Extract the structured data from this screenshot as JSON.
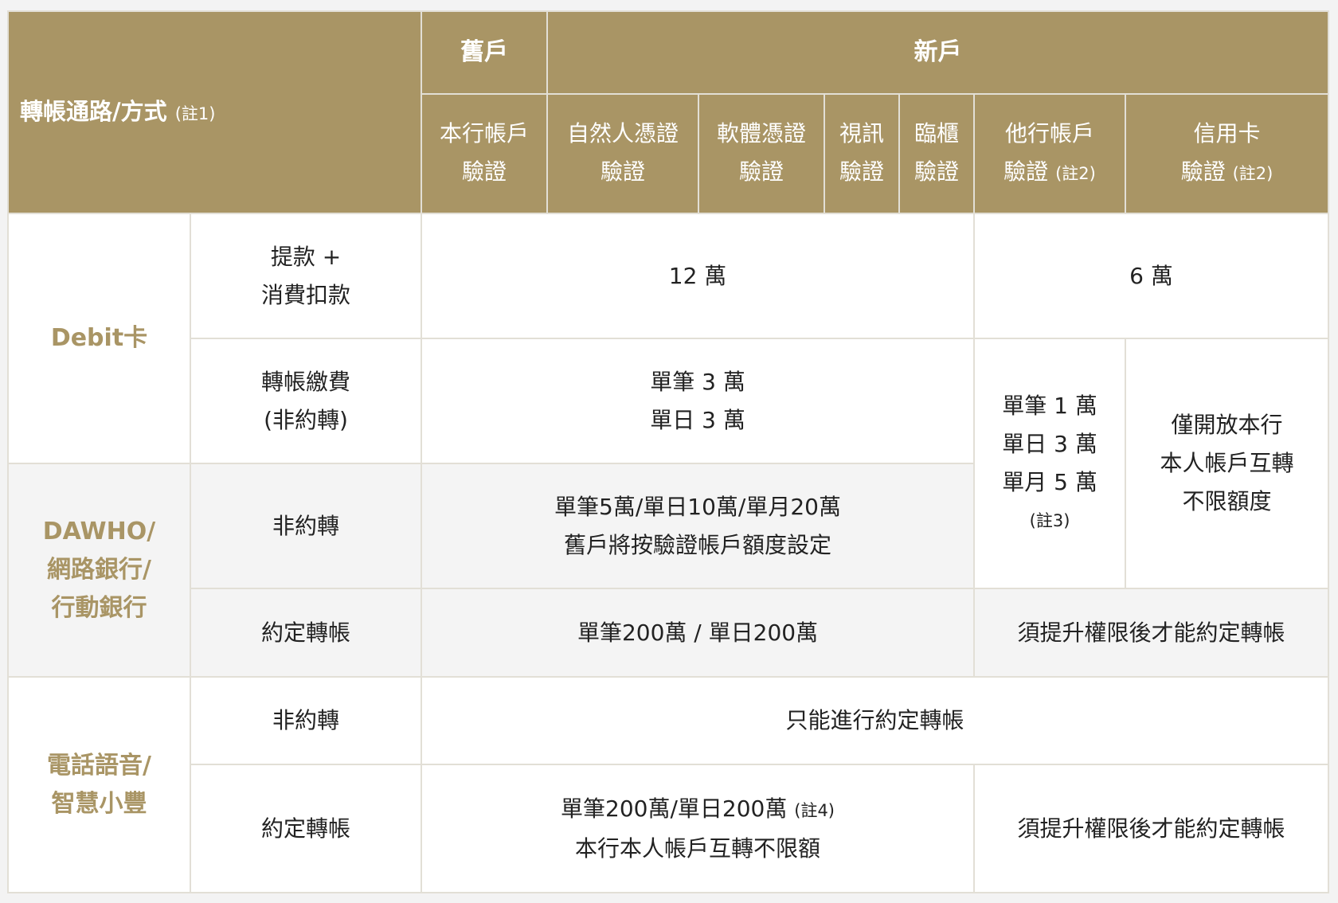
{
  "header": {
    "corner_title": "轉帳通路/方式",
    "corner_note": "(註1)",
    "old_account": "舊戶",
    "new_account": "新戶",
    "columns": [
      {
        "line1": "本行帳戶",
        "line2": "驗證",
        "note": ""
      },
      {
        "line1": "自然人憑證",
        "line2": "驗證",
        "note": ""
      },
      {
        "line1": "軟體憑證",
        "line2": "驗證",
        "note": ""
      },
      {
        "line1": "視訊",
        "line2": "驗證",
        "note": ""
      },
      {
        "line1": "臨櫃",
        "line2": "驗證",
        "note": ""
      },
      {
        "line1": "他行帳戶",
        "line2": "驗證",
        "note": "(註2)"
      },
      {
        "line1": "信用卡",
        "line2": "驗證",
        "note": "(註2)"
      }
    ]
  },
  "groups": {
    "debit": "Debit卡",
    "dawho": [
      "DAWHO/",
      "網路銀行/",
      "行動銀行"
    ],
    "phone": [
      "電話語音/",
      "智慧小豐"
    ]
  },
  "rows": {
    "withdraw": {
      "label": [
        "提款 +",
        "消費扣款"
      ],
      "main": "12 萬",
      "other": "6 萬"
    },
    "payment": {
      "label": [
        "轉帳繳費",
        "(非約轉)"
      ],
      "main": [
        "單筆 3 萬",
        "單日 3 萬"
      ]
    },
    "other_bank_limit": {
      "lines": [
        "單筆 1 萬",
        "單日 3 萬",
        "單月 5 萬"
      ],
      "note": "(註3)"
    },
    "credit_card_limit": [
      "僅開放本行",
      "本人帳戶互轉",
      "不限額度"
    ],
    "dawho_non_agreed": {
      "label": "非約轉",
      "main": [
        "單筆5萬/單日10萬/單月20萬",
        "舊戶將按驗證帳戶額度設定"
      ]
    },
    "dawho_agreed": {
      "label": "約定轉帳",
      "main": "單筆200萬 / 單日200萬",
      "other": "須提升權限後才能約定轉帳"
    },
    "phone_non_agreed": {
      "label": "非約轉",
      "main": "只能進行約定轉帳"
    },
    "phone_agreed": {
      "label": "約定轉帳",
      "main1": "單筆200萬/單日200萬",
      "main1_note": "(註4)",
      "main2": "本行本人帳戶互轉不限額",
      "other": "須提升權限後才能約定轉帳"
    }
  },
  "colors": {
    "header_gold": "#a99565",
    "border": "#e2dfd6",
    "shaded_row": "#f4f4f4"
  }
}
